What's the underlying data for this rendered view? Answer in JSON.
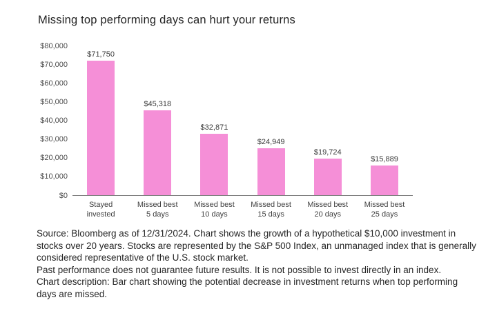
{
  "title": "Missing top performing days can hurt your returns",
  "chart_data": {
    "type": "bar",
    "title": "Missing top performing days can hurt your returns",
    "categories": [
      "Stayed\ninvested",
      "Missed best\n5 days",
      "Missed best\n10 days",
      "Missed best\n15 days",
      "Missed best\n20 days",
      "Missed best\n25 days"
    ],
    "values": [
      71750,
      45318,
      32871,
      24949,
      19724,
      15889
    ],
    "value_labels": [
      "$71,750",
      "$45,318",
      "$32,871",
      "$24,949",
      "$19,724",
      "$15,889"
    ],
    "y_ticks": [
      "$80,000",
      "$70,000",
      "$60,000",
      "$50,000",
      "$40,000",
      "$30,000",
      "$20,000",
      "$10,000",
      "$0"
    ],
    "ylim": [
      0,
      80000
    ],
    "xlabel": "",
    "ylabel": "",
    "grid": false,
    "legend": false,
    "bar_color": "#f58fd7",
    "axis_line_color": "#808080"
  },
  "footnote": {
    "paragraph1": "Source: Bloomberg as of 12/31/2024. Chart shows the growth of a hypothetical $10,000 investment in stocks over 20 years. Stocks are represented by the S&P 500 Index, an unmanaged index that is generally considered representative of the U.S. stock market.",
    "paragraph2": "Past performance does not guarantee future results. It is not possible to invest directly in an index.",
    "paragraph3": "Chart description: Bar chart showing the potential decrease in investment returns when top performing days are missed."
  }
}
